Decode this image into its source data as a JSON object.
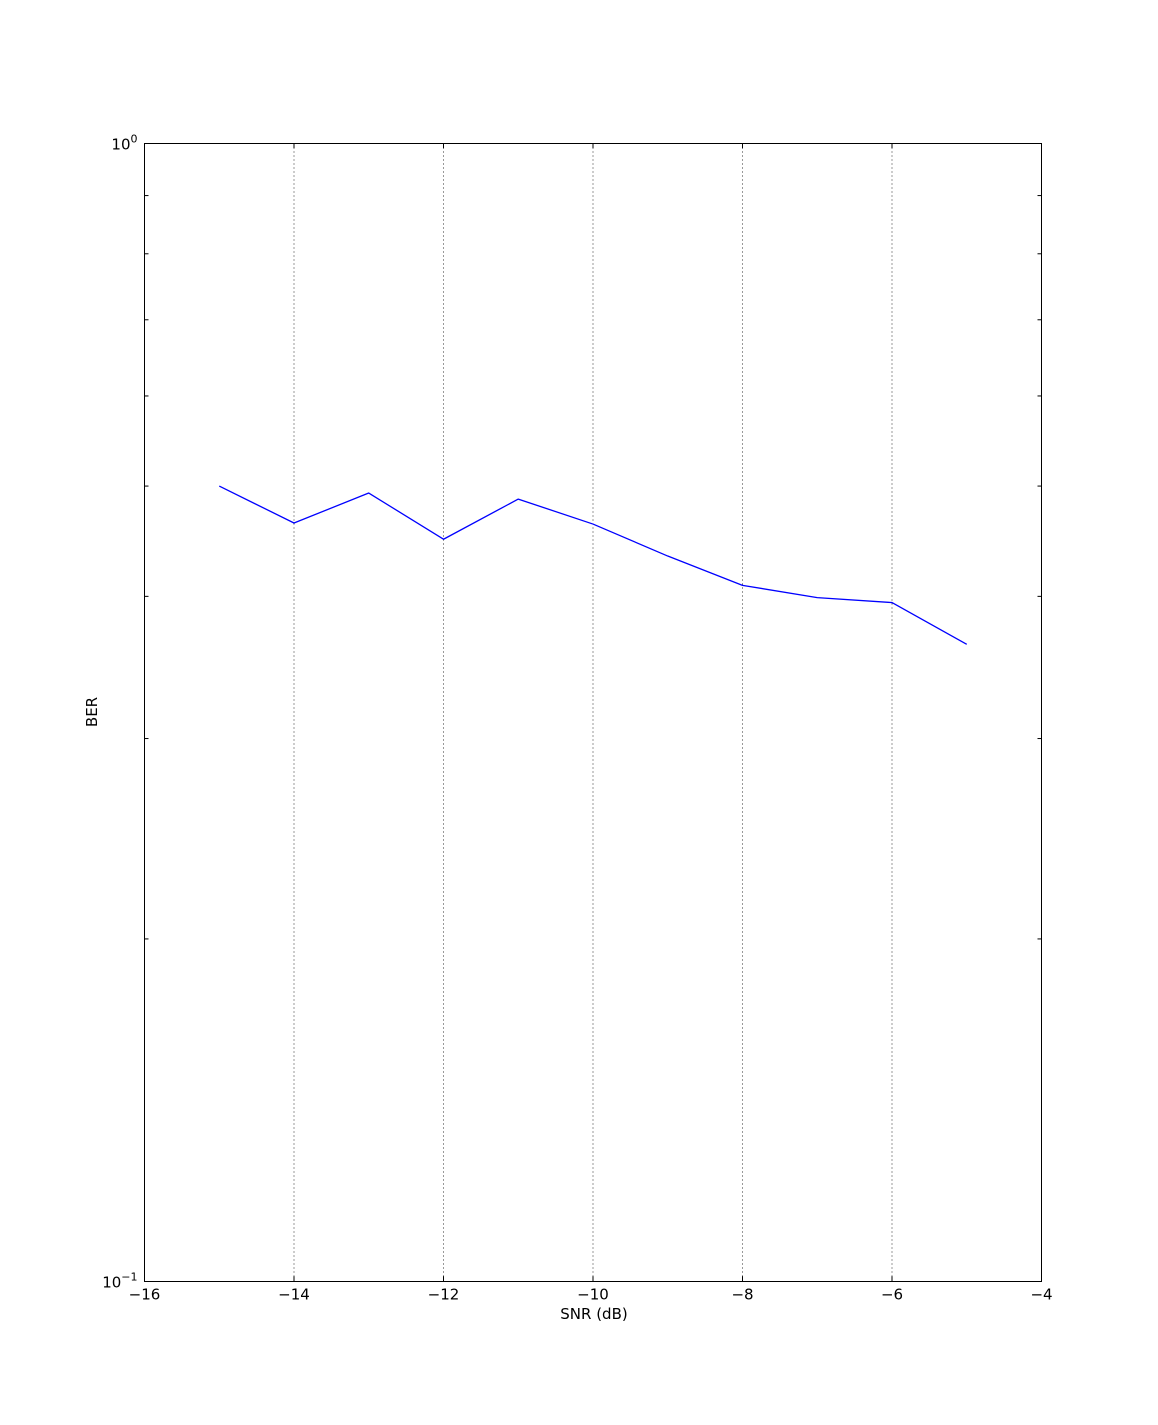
{
  "chart_data": {
    "type": "line",
    "title": "",
    "xlabel": "SNR (dB)",
    "ylabel": "BER",
    "xlim": [
      -16,
      -4
    ],
    "ylim": [
      0.1,
      1
    ],
    "yscale": "log",
    "grid": "vertical-dotted",
    "x_ticks": [
      -16,
      -14,
      -12,
      -10,
      -8,
      -6,
      -4
    ],
    "x_tick_labels": [
      "−16",
      "−14",
      "−12",
      "−10",
      "−8",
      "−6",
      "−4"
    ],
    "y_ticks": [
      {
        "value": 0.1,
        "base": "10",
        "exp": "-1"
      },
      {
        "value": 1,
        "base": "10",
        "exp": "0"
      }
    ],
    "y_minor_ticks": [
      0.2,
      0.3,
      0.4,
      0.5,
      0.6,
      0.7,
      0.8,
      0.9
    ],
    "series": [
      {
        "color": "#0000ff",
        "x": [
          -15,
          -14,
          -13,
          -12,
          -11,
          -10,
          -9,
          -8,
          -7,
          -6,
          -5
        ],
        "y": [
          0.5,
          0.464,
          0.493,
          0.449,
          0.487,
          0.463,
          0.434,
          0.409,
          0.399,
          0.395,
          0.363
        ]
      }
    ]
  }
}
